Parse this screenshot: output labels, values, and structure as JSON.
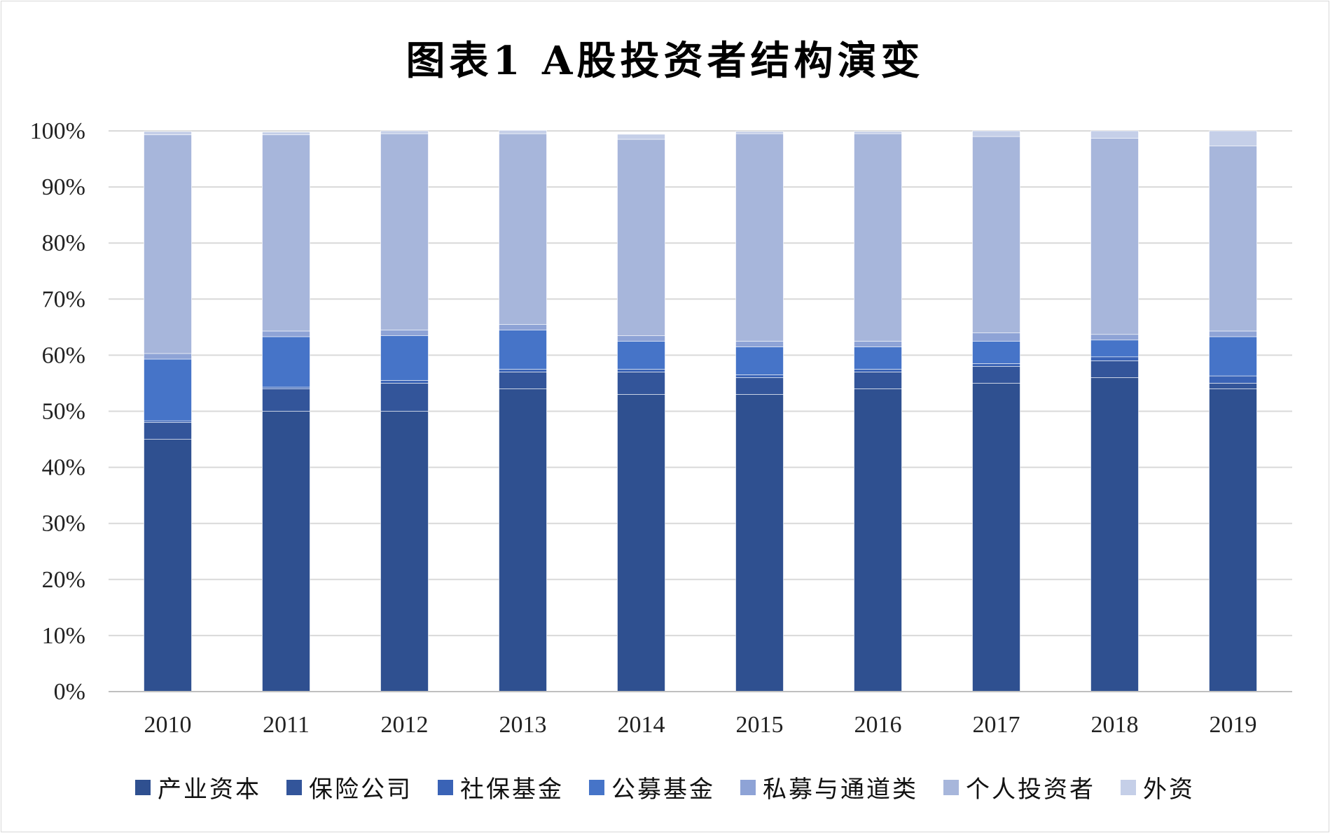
{
  "chart_data": {
    "type": "bar",
    "stacked": true,
    "title": "图表1 A股投资者结构演变",
    "xlabel": "",
    "ylabel": "",
    "ylim": [
      0,
      100
    ],
    "y_ticks": [
      "0%",
      "10%",
      "20%",
      "30%",
      "40%",
      "50%",
      "60%",
      "70%",
      "80%",
      "90%",
      "100%"
    ],
    "grid": true,
    "legend_position": "bottom",
    "categories": [
      "2010",
      "2011",
      "2012",
      "2013",
      "2014",
      "2015",
      "2016",
      "2017",
      "2018",
      "2019"
    ],
    "series": [
      {
        "name": "产业资本",
        "color": "#2f5090",
        "values": [
          45.0,
          50.0,
          50.0,
          54.0,
          53.0,
          53.0,
          54.0,
          55.0,
          56.0,
          54.0
        ]
      },
      {
        "name": "保险公司",
        "color": "#33559a",
        "values": [
          3.0,
          4.0,
          5.0,
          3.0,
          4.0,
          3.0,
          3.0,
          3.0,
          3.0,
          1.0
        ]
      },
      {
        "name": "社保基金",
        "color": "#3a63b6",
        "values": [
          0.3,
          0.3,
          0.5,
          0.5,
          0.5,
          0.5,
          0.5,
          0.5,
          0.7,
          1.3
        ]
      },
      {
        "name": "公募基金",
        "color": "#4674c8",
        "values": [
          11.0,
          9.0,
          8.0,
          7.0,
          5.0,
          5.0,
          4.0,
          4.0,
          3.0,
          7.0
        ]
      },
      {
        "name": "私募与通道类",
        "color": "#8ea3d6",
        "values": [
          1.0,
          1.0,
          1.0,
          1.0,
          1.0,
          1.0,
          1.0,
          1.5,
          1.0,
          1.0
        ]
      },
      {
        "name": "个人投资者",
        "color": "#a7b6db",
        "values": [
          39.0,
          35.0,
          35.0,
          34.0,
          35.0,
          37.0,
          37.0,
          35.0,
          35.0,
          33.0
        ]
      },
      {
        "name": "外资",
        "color": "#c5cfe8",
        "values": [
          0.6,
          0.5,
          0.5,
          0.6,
          0.9,
          0.4,
          0.4,
          1.0,
          1.3,
          2.7
        ]
      }
    ]
  }
}
